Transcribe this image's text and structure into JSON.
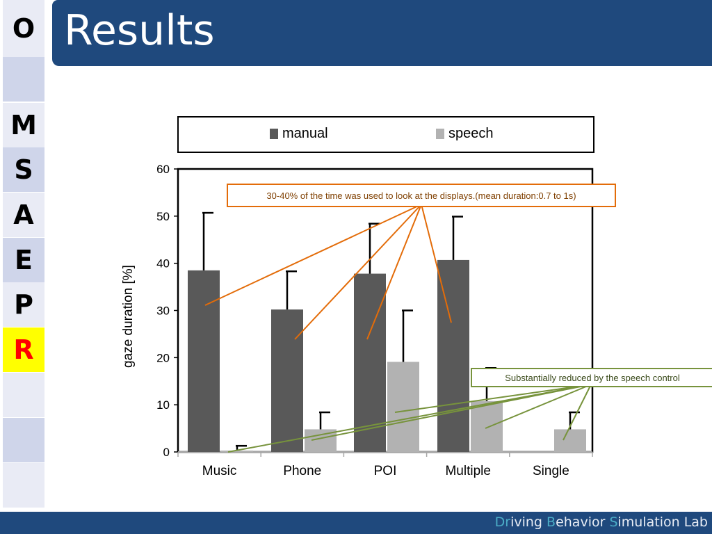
{
  "title": "Results",
  "nav": {
    "items": [
      "O",
      "",
      "M",
      "S",
      "A",
      "E",
      "P",
      "R",
      "",
      "",
      ""
    ],
    "active_index": 7,
    "active_color": "#ffff00",
    "active_text_color": "#ff0000",
    "cell_colors": [
      "#e9ebf5",
      "#cfd5ea",
      "#e9ebf5",
      "#cfd5ea",
      "#e9ebf5",
      "#cfd5ea",
      "#e9ebf5",
      "#ffff00",
      "#e9ebf5",
      "#cfd5ea",
      "#e9ebf5"
    ]
  },
  "footer": {
    "parts": [
      {
        "text": "Dr",
        "hl": true
      },
      {
        "text": "iving ",
        "hl": false
      },
      {
        "text": "B",
        "hl": true
      },
      {
        "text": "ehavior ",
        "hl": false
      },
      {
        "text": "S",
        "hl": true
      },
      {
        "text": "imulation Lab",
        "hl": false
      }
    ]
  },
  "chart_data": {
    "type": "bar",
    "categories": [
      "Music",
      "Phone",
      "POI",
      "Multiple",
      "Single"
    ],
    "series": [
      {
        "name": "manual",
        "color": "#595959",
        "values": [
          38.5,
          30.2,
          37.8,
          40.7,
          null
        ],
        "errors": [
          12.2,
          8.1,
          10.6,
          9.2,
          null
        ]
      },
      {
        "name": "speech",
        "color": "#b2b2b2",
        "values": [
          0.3,
          4.8,
          19.1,
          10.8,
          4.8
        ],
        "errors": [
          1.0,
          3.6,
          10.9,
          7.0,
          3.6
        ]
      }
    ],
    "ylabel": "gaze duration [%]",
    "xlabel": "",
    "ylim": [
      0,
      60
    ],
    "yticks": [
      0,
      10,
      20,
      30,
      40,
      50,
      60
    ],
    "legend_position": "top"
  },
  "annotations": {
    "orange": "30-40% of the time was used to look at the displays.(mean duration:0.7 to 1s)",
    "green": "Substantially reduced by the speech control",
    "orange_color": "#e36c09",
    "green_color": "#77933c"
  }
}
